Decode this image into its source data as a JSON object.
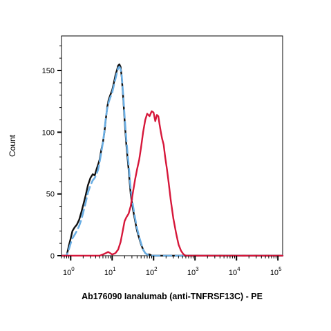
{
  "chart_data": {
    "type": "line",
    "title": "",
    "xlabel": "Ab176090 Ianalumab (anti-TNFRSF13C) - PE",
    "ylabel": "Count",
    "xscale": "log",
    "xlim": [
      0.6,
      130000
    ],
    "ylim": [
      0,
      178
    ],
    "grid": false,
    "legend": "none",
    "y_ticks": [
      {
        "value": 0,
        "label": "0"
      },
      {
        "value": 50,
        "label": "50"
      },
      {
        "value": 100,
        "label": "100"
      },
      {
        "value": 150,
        "label": "150"
      }
    ],
    "x_ticks": [
      {
        "value": 1,
        "base": "10",
        "exp": "0"
      },
      {
        "value": 10,
        "base": "10",
        "exp": "1"
      },
      {
        "value": 100,
        "base": "10",
        "exp": "2"
      },
      {
        "value": 1000,
        "base": "10",
        "exp": "3"
      },
      {
        "value": 10000,
        "base": "10",
        "exp": "4"
      },
      {
        "value": 100000,
        "base": "10",
        "exp": "5"
      }
    ],
    "series": [
      {
        "color": "#111111",
        "style": "solid",
        "x": [
          0.6,
          0.8,
          0.9,
          1.0,
          1.1,
          1.25,
          1.4,
          1.6,
          1.8,
          2.0,
          2.3,
          2.6,
          3.0,
          3.4,
          3.8,
          4.2,
          4.6,
          5.0,
          5.5,
          6.0,
          6.5,
          7.0,
          7.6,
          8.2,
          9.0,
          10.0,
          11.0,
          12.0,
          13.0,
          14.0,
          15.0,
          16.0,
          17.0,
          18.5,
          20.0,
          22.0,
          25.0,
          28.0,
          32.0,
          36.0,
          40.0,
          45.0,
          50.0,
          56.0,
          63.0,
          70.0,
          80.0,
          90.0,
          100.0,
          130.0,
          200.0,
          1000.0,
          10000.0,
          130000.0
        ],
        "y": [
          0,
          0,
          8,
          14,
          20,
          23,
          25,
          29,
          35,
          41,
          49,
          57,
          63,
          66,
          65,
          70,
          74,
          78,
          86,
          92,
          100,
          110,
          120,
          126,
          130,
          134,
          140,
          146,
          150,
          154,
          155,
          153,
          145,
          128,
          110,
          90,
          70,
          50,
          37,
          28,
          20,
          14,
          9,
          5,
          2,
          1,
          1,
          0,
          0,
          0,
          0,
          0,
          0,
          0
        ]
      },
      {
        "color": "#6aaee4",
        "style": "dashed",
        "x": [
          0.6,
          0.8,
          0.9,
          1.0,
          1.1,
          1.25,
          1.4,
          1.6,
          1.8,
          2.0,
          2.3,
          2.6,
          3.0,
          3.4,
          3.8,
          4.2,
          4.6,
          5.0,
          5.5,
          6.0,
          6.5,
          7.0,
          7.6,
          8.2,
          9.0,
          10.0,
          11.0,
          12.0,
          13.0,
          14.0,
          15.0,
          16.0,
          17.0,
          18.5,
          20.0,
          22.0,
          25.0,
          28.0,
          32.0,
          36.0,
          40.0,
          45.0,
          50.0,
          56.0,
          63.0,
          70.0,
          80.0,
          90.0,
          100.0,
          130.0,
          200.0,
          1000.0,
          10000.0,
          130000.0
        ],
        "y": [
          0,
          0,
          5,
          10,
          14,
          17,
          20,
          24,
          29,
          35,
          43,
          51,
          57,
          61,
          63,
          66,
          70,
          76,
          84,
          92,
          101,
          111,
          119,
          124,
          128,
          132,
          138,
          143,
          148,
          152,
          153,
          151,
          146,
          130,
          113,
          94,
          74,
          54,
          40,
          30,
          22,
          15,
          10,
          5,
          2,
          1,
          0,
          0,
          0,
          0,
          0,
          0,
          0,
          0
        ]
      },
      {
        "color": "#d6173a",
        "style": "solid",
        "x": [
          0.6,
          1.0,
          3.0,
          5.0,
          6.0,
          7.0,
          8.0,
          9.0,
          10.0,
          12.0,
          14.0,
          16.0,
          18.0,
          20.0,
          22.0,
          25.0,
          28.0,
          32.0,
          36.0,
          40.0,
          45.0,
          50.0,
          56.0,
          63.0,
          70.0,
          80.0,
          90.0,
          100.0,
          110.0,
          120.0,
          130.0,
          140.0,
          150.0,
          160.0,
          175.0,
          190.0,
          210.0,
          230.0,
          260.0,
          300.0,
          350.0,
          400.0,
          460.0,
          530.0,
          600.0,
          700.0,
          800.0,
          1000.0,
          10000.0,
          130000.0
        ],
        "y": [
          0,
          0,
          0,
          0,
          1,
          2,
          3,
          2,
          1,
          2,
          5,
          11,
          20,
          28,
          31,
          34,
          40,
          52,
          62,
          70,
          78,
          88,
          100,
          110,
          115,
          113,
          117,
          116,
          109,
          114,
          113,
          106,
          100,
          95,
          90,
          80,
          70,
          60,
          45,
          30,
          18,
          9,
          4,
          1,
          0,
          0,
          0,
          0,
          0,
          0
        ]
      }
    ]
  }
}
